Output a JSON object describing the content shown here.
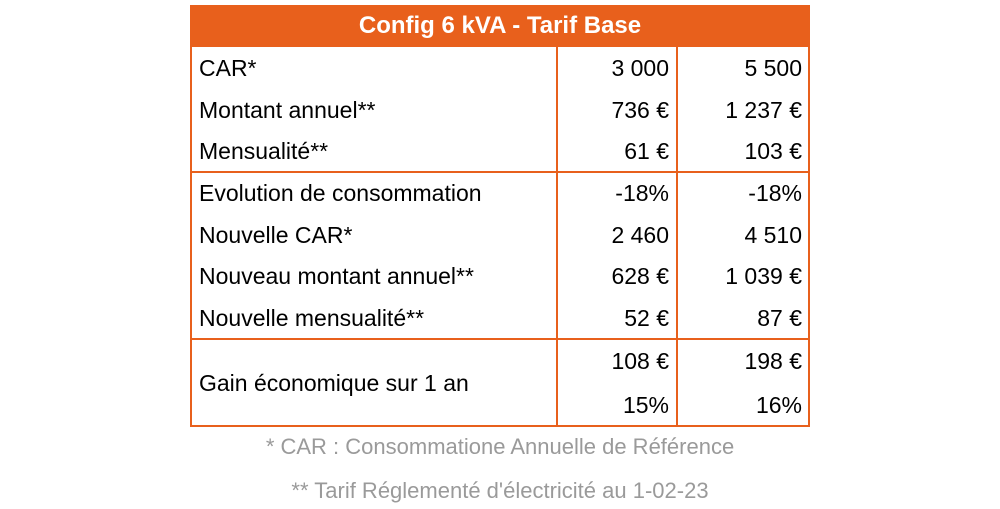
{
  "header": {
    "title": "Config 6 kVA - Tarif Base"
  },
  "groups": [
    [
      [
        "CAR*",
        "3 000",
        "5 500"
      ],
      [
        "Montant annuel**",
        "736 €",
        "1 237 €"
      ],
      [
        "Mensualité**",
        "61 €",
        "103 €"
      ]
    ],
    [
      [
        "Evolution de consommation",
        "-18%",
        "-18%"
      ],
      [
        "Nouvelle CAR*",
        "2 460",
        "4 510"
      ],
      [
        "Nouveau montant annuel**",
        "628 €",
        "1 039 €"
      ],
      [
        "Nouvelle mensualité**",
        "52 €",
        "87 €"
      ]
    ]
  ],
  "gain": {
    "label": "Gain économique sur 1 an",
    "lines": [
      [
        "108 €",
        "198 €"
      ],
      [
        "15%",
        "16%"
      ]
    ]
  },
  "footnotes": [
    "* CAR : Consommatione Annuelle de Référence",
    "** Tarif Réglementé d'électricité au 1-02-23"
  ]
}
